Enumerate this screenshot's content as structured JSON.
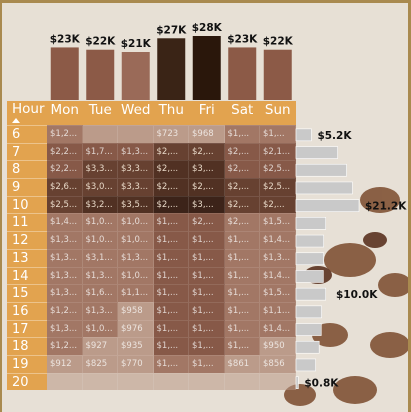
{
  "chart_data": [
    {
      "type": "bar",
      "categories": [
        "Mon",
        "Tue",
        "Wed",
        "Thu",
        "Fri",
        "Sat",
        "Sun"
      ],
      "values": [
        23,
        22,
        21,
        27,
        28,
        23,
        22
      ],
      "data_labels": [
        "$23K",
        "$22K",
        "$21K",
        "$27K",
        "$28K",
        "$23K",
        "$22K"
      ],
      "unit": "K$",
      "colors": [
        "#8c5a47",
        "#8c5a47",
        "#9a6a58",
        "#3a2416",
        "#2a170b",
        "#8c5a47",
        "#8c5a47"
      ]
    },
    {
      "type": "heatmap",
      "row_header": "Hour",
      "columns": [
        "Mon",
        "Tue",
        "Wed",
        "Thu",
        "Fri",
        "Sat",
        "Sun"
      ],
      "rows": [
        "6",
        "7",
        "8",
        "9",
        "10",
        "11",
        "12",
        "13",
        "14",
        "15",
        "16",
        "17",
        "18",
        "19",
        "20"
      ],
      "cells": [
        [
          "$1,2...",
          "",
          "",
          "",
          "$968",
          "$1,...",
          "$1,..."
        ],
        [
          "$2,2...",
          "$1,7...",
          "$1,3...",
          "$2,...",
          "$2,...",
          "$2,...",
          "$2,1..."
        ],
        [
          "$2,2...",
          "$3,3...",
          "$3,3...",
          "$2,...",
          "$3,...",
          "$2,...",
          "$2,5..."
        ],
        [
          "$2,6...",
          "$3,0...",
          "$3,3...",
          "$2,...",
          "$2,...",
          "$2,...",
          "$2,5..."
        ],
        [
          "$2,5...",
          "$3,2...",
          "$3,5...",
          "$2,...",
          "$3,...",
          "$2,...",
          "$2,..."
        ],
        [
          "$1,4...",
          "$1,0...",
          "$1,0...",
          "$1,...",
          "$2,...",
          "$2,...",
          "$1,5..."
        ],
        [
          "$1,3...",
          "$1,0...",
          "$1,0...",
          "$1,...",
          "$1,...",
          "$1,...",
          "$1,4..."
        ],
        [
          "$1,3...",
          "$3,1...",
          "$1,3...",
          "$1,...",
          "$1,...",
          "$1,...",
          "$1,3..."
        ],
        [
          "$1,3...",
          "$1,3...",
          "$1,0...",
          "$1,...",
          "$1,...",
          "$1,...",
          "$1,4..."
        ],
        [
          "$1,3...",
          "$1,6...",
          "$1,1...",
          "$1,...",
          "$1,...",
          "$1,...",
          "$1,5..."
        ],
        [
          "$1,2...",
          "$1,3...",
          "$958",
          "$1,...",
          "$1,...",
          "$1,...",
          "$1,1..."
        ],
        [
          "$1,3...",
          "$1,0...",
          "$976",
          "$1,...",
          "$1,...",
          "$1,...",
          "$1,4..."
        ],
        [
          "$1,2...",
          "$927",
          "$935",
          "$1,...",
          "$1,...",
          "$1,...",
          "$950"
        ],
        [
          "$912",
          "$825",
          "$770",
          "$1,...",
          "$1,...",
          "$861",
          "$856"
        ],
        [
          "",
          "",
          "",
          "",
          "",
          "",
          ""
        ]
      ],
      "thu_row6_label": "$723",
      "shade_levels": [
        [
          2,
          1,
          1,
          1,
          1,
          2,
          2
        ],
        [
          3,
          3,
          3,
          4,
          4,
          3,
          3
        ],
        [
          3,
          4,
          4,
          5,
          5,
          3,
          3
        ],
        [
          4,
          4,
          4,
          5,
          5,
          4,
          4
        ],
        [
          4,
          5,
          5,
          6,
          6,
          4,
          4
        ],
        [
          2,
          2,
          2,
          3,
          3,
          2,
          2
        ],
        [
          2,
          2,
          2,
          3,
          3,
          2,
          2
        ],
        [
          2,
          2,
          2,
          3,
          3,
          2,
          2
        ],
        [
          2,
          2,
          2,
          3,
          3,
          2,
          2
        ],
        [
          2,
          2,
          2,
          3,
          3,
          2,
          2
        ],
        [
          2,
          2,
          1,
          3,
          3,
          2,
          2
        ],
        [
          2,
          2,
          1,
          3,
          3,
          2,
          2
        ],
        [
          2,
          1,
          1,
          3,
          3,
          2,
          1
        ],
        [
          1,
          1,
          1,
          2,
          2,
          1,
          1
        ],
        [
          1,
          1,
          1,
          1,
          1,
          1,
          1
        ]
      ]
    },
    {
      "type": "bar",
      "orientation": "horizontal",
      "categories": [
        "6",
        "7",
        "8",
        "9",
        "10",
        "11",
        "12",
        "13",
        "14",
        "15",
        "16",
        "17",
        "18",
        "19",
        "20"
      ],
      "values": [
        5.2,
        14.0,
        17.0,
        19.0,
        21.2,
        10.0,
        9.3,
        9.3,
        9.2,
        10.0,
        8.6,
        8.5,
        7.8,
        6.6,
        0.8
      ],
      "data_labels": [
        "$5.2K",
        "",
        "",
        "",
        "$21.2K",
        "",
        "",
        "",
        "",
        "$10.0K",
        "",
        "",
        "",
        "",
        "$0.8K"
      ],
      "unit": "K$"
    }
  ]
}
